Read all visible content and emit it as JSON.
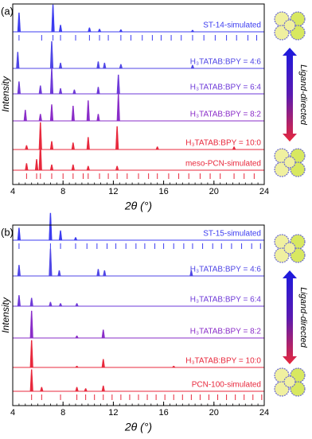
{
  "chart_data": [
    {
      "type": "line",
      "panel_label": "(a)",
      "xlabel": "2θ (°)",
      "ylabel": "Intensity",
      "side_label": "Ligand-directed",
      "xlim": [
        4,
        24
      ],
      "xticks": [
        4,
        8,
        12,
        16,
        20,
        24
      ],
      "series": [
        {
          "name": "ST-14-simulated",
          "color": "#3c3cf0",
          "x": [
            4.5,
            7.2,
            7.8,
            10.1,
            10.9,
            12.6,
            18.3
          ],
          "values": [
            70,
            100,
            25,
            15,
            10,
            8,
            6
          ],
          "reflections": [
            4.5,
            6.3,
            7.2,
            7.8,
            9.0,
            10.1,
            10.9,
            11.6,
            12.6,
            13.4,
            14.3,
            15.1,
            15.8,
            16.6,
            17.4,
            18.3,
            19.2,
            20.1,
            21.0,
            21.8,
            22.7,
            23.4
          ]
        },
        {
          "name": "H₃TATAB:BPY = 4:6",
          "color": "#4f46e6",
          "x": [
            4.4,
            7.1,
            7.8,
            10.8,
            11.3,
            12.6,
            18.3
          ],
          "values": [
            60,
            100,
            20,
            25,
            20,
            15,
            12
          ]
        },
        {
          "name": "H₃TATAB:BPY = 6:4",
          "color": "#6e3ad8",
          "x": [
            4.5,
            6.2,
            7.1,
            7.8,
            8.9,
            10.8,
            12.4
          ],
          "values": [
            45,
            30,
            95,
            20,
            15,
            25,
            70
          ]
        },
        {
          "name": "H₃TATAB:BPY = 8:2",
          "color": "#8a2cc8",
          "x": [
            5.0,
            6.2,
            7.1,
            8.8,
            10.0,
            10.8,
            12.4
          ],
          "values": [
            40,
            25,
            60,
            55,
            75,
            25,
            100
          ]
        },
        {
          "name": "H₃TATAB:BPY = 10:0",
          "color": "#e8283c",
          "x": [
            5.1,
            6.2,
            7.1,
            8.8,
            10.0,
            12.3,
            15.5,
            21.6
          ],
          "values": [
            15,
            100,
            30,
            25,
            45,
            85,
            10,
            10
          ]
        },
        {
          "name": "meso-PCN-simulated",
          "color": "#e8283c",
          "x": [
            5.1,
            5.9,
            6.2,
            7.1,
            8.8,
            10.0,
            12.3
          ],
          "values": [
            25,
            40,
            100,
            20,
            20,
            15,
            15
          ],
          "reflections": [
            5.1,
            5.9,
            6.2,
            7.1,
            8.0,
            8.8,
            9.6,
            10.0,
            10.9,
            11.6,
            12.3,
            13.1,
            14.0,
            14.8,
            15.5,
            16.4,
            17.2,
            18.0,
            18.9,
            19.7,
            20.5,
            21.6,
            22.4,
            23.2
          ]
        }
      ]
    },
    {
      "type": "line",
      "panel_label": "(b)",
      "xlabel": "2θ (°)",
      "ylabel": "Intensity",
      "side_label": "Ligand-directed",
      "xlim": [
        4,
        24
      ],
      "xticks": [
        4,
        8,
        12,
        16,
        20,
        24
      ],
      "series": [
        {
          "name": "ST-15-simulated",
          "color": "#3c3cf0",
          "x": [
            4.5,
            7.0,
            7.8,
            9.0
          ],
          "values": [
            45,
            100,
            35,
            10
          ],
          "reflections": [
            4.5,
            7.0,
            7.8,
            9.0,
            9.9,
            10.7,
            11.5,
            12.2,
            13.0,
            13.8,
            14.5,
            15.3,
            16.0,
            16.8,
            17.6,
            18.3,
            19.1,
            19.9,
            20.6,
            21.4,
            22.2,
            23.0,
            23.7
          ]
        },
        {
          "name": "H₃TATAB:BPY = 4:6",
          "color": "#4f46e6",
          "x": [
            4.5,
            7.0,
            7.7,
            10.8,
            11.3,
            18.2
          ],
          "values": [
            40,
            100,
            20,
            25,
            20,
            20
          ]
        },
        {
          "name": "H₃TATAB:BPY = 6:4",
          "color": "#6e3ad8",
          "x": [
            4.5,
            5.5,
            7.0,
            7.8,
            9.1
          ],
          "values": [
            40,
            30,
            15,
            10,
            10
          ]
        },
        {
          "name": "H₃TATAB:BPY = 8:2",
          "color": "#8a2cc8",
          "x": [
            5.5,
            9.1,
            11.2
          ],
          "values": [
            100,
            8,
            30
          ]
        },
        {
          "name": "H₃TATAB:BPY = 10:0",
          "color": "#e8283c",
          "x": [
            5.5,
            9.1,
            11.2,
            16.8
          ],
          "values": [
            100,
            5,
            30,
            5
          ]
        },
        {
          "name": "PCN-100-simulated",
          "color": "#e8283c",
          "x": [
            5.5,
            6.3,
            9.1,
            9.8,
            11.2
          ],
          "values": [
            80,
            15,
            15,
            10,
            20
          ],
          "reflections": [
            5.5,
            6.3,
            7.8,
            9.1,
            9.8,
            10.5,
            11.2,
            11.9,
            12.6,
            13.3,
            14.0,
            14.7,
            15.4,
            16.1,
            16.8,
            17.5,
            18.2,
            18.9,
            19.6,
            20.3,
            21.0,
            21.7,
            22.4,
            23.1,
            23.8
          ]
        }
      ]
    }
  ]
}
